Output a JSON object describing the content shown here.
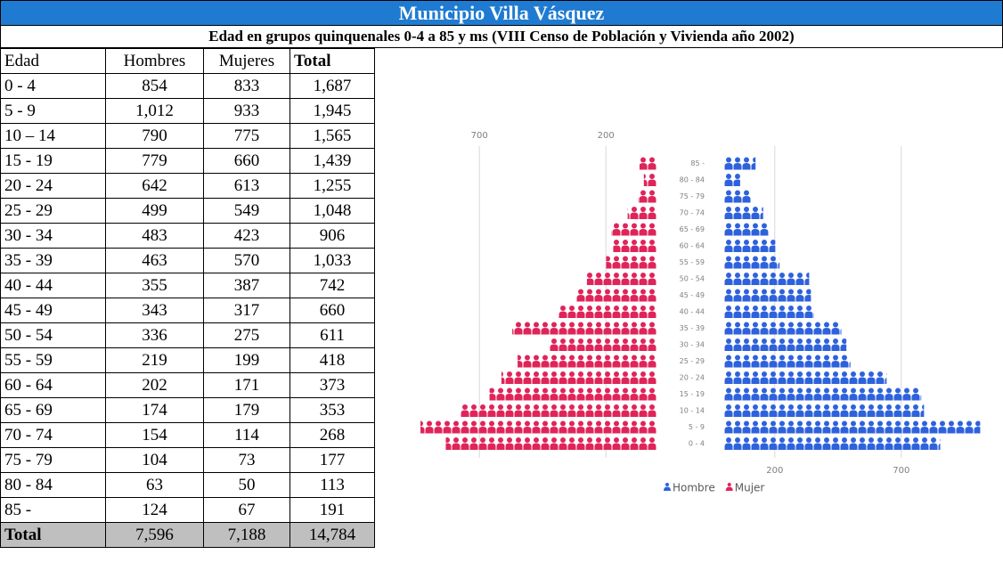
{
  "header": {
    "title": "Municipio Villa Vásquez",
    "subtitle": "Edad en grupos quinquenales 0-4 a 85 y ms (VIII Censo de Población y Vivienda año 2002)"
  },
  "table": {
    "columns": [
      "Edad",
      "Hombres",
      "Mujeres",
      "Total"
    ],
    "rows": [
      [
        "0 - 4",
        "854",
        "833",
        "1,687"
      ],
      [
        "5 - 9",
        "1,012",
        "933",
        "1,945"
      ],
      [
        "10 – 14",
        "790",
        "775",
        "1,565"
      ],
      [
        "15 - 19",
        "779",
        "660",
        "1,439"
      ],
      [
        "20 - 24",
        "642",
        "613",
        "1,255"
      ],
      [
        "25 - 29",
        "499",
        "549",
        "1,048"
      ],
      [
        "30 - 34",
        "483",
        "423",
        "906"
      ],
      [
        "35 - 39",
        "463",
        "570",
        "1,033"
      ],
      [
        "40 - 44",
        "355",
        "387",
        "742"
      ],
      [
        "45 - 49",
        "343",
        "317",
        "660"
      ],
      [
        "50 - 54",
        "336",
        "275",
        "611"
      ],
      [
        "55 - 59",
        "219",
        "199",
        "418"
      ],
      [
        "60 - 64",
        "202",
        "171",
        "373"
      ],
      [
        "65 - 69",
        "174",
        "179",
        "353"
      ],
      [
        "70 - 74",
        "154",
        "114",
        "268"
      ],
      [
        "75 - 79",
        "104",
        "73",
        "177"
      ],
      [
        "80 - 84",
        "63",
        "50",
        "113"
      ],
      [
        "85 -",
        "124",
        "67",
        "191"
      ]
    ],
    "total": [
      "Total",
      "7,596",
      "7,188",
      "14,784"
    ]
  },
  "chart_data": {
    "type": "pyramid",
    "categories": [
      "0 - 4",
      "5 - 9",
      "10 - 14",
      "15 - 19",
      "20 - 24",
      "25 - 29",
      "30 - 34",
      "35 - 39",
      "40 - 44",
      "45 - 49",
      "50 - 54",
      "55 - 59",
      "60 - 64",
      "65 - 69",
      "70 - 74",
      "75 - 79",
      "80 - 84",
      "85 -"
    ],
    "series": [
      {
        "name": "Hombre",
        "color": "#2e62dc",
        "values": [
          854,
          1012,
          790,
          779,
          642,
          499,
          483,
          463,
          355,
          343,
          336,
          219,
          202,
          174,
          154,
          104,
          63,
          124
        ]
      },
      {
        "name": "Mujer",
        "color": "#e0245a",
        "values": [
          833,
          933,
          775,
          660,
          613,
          549,
          423,
          570,
          387,
          317,
          275,
          199,
          171,
          179,
          114,
          73,
          50,
          67
        ]
      }
    ],
    "xlim": [
      0,
      1000
    ],
    "xticks": [
      200,
      700
    ],
    "grid": true
  }
}
